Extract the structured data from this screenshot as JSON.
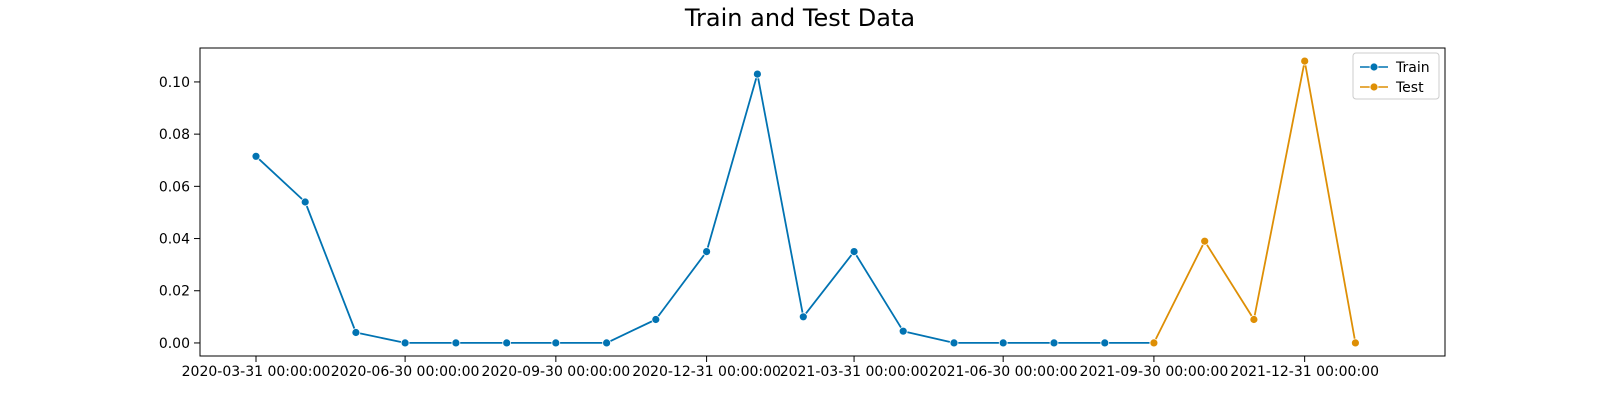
{
  "chart_data": {
    "type": "line",
    "title": "Train and Test Data",
    "xlabel": "",
    "ylabel": "",
    "ylim": [
      -0.005,
      0.113
    ],
    "grid": false,
    "legend_placement": "top-right",
    "x_ticks": [
      "2020-03-31 00:00:00",
      "2020-06-30 00:00:00",
      "2020-09-30 00:00:00",
      "2020-12-31 00:00:00",
      "2021-03-31 00:00:00",
      "2021-06-30 00:00:00",
      "2021-09-30 00:00:00",
      "2021-12-31 00:00:00"
    ],
    "y_ticks": [
      "0.00",
      "0.02",
      "0.04",
      "0.06",
      "0.08",
      "0.10"
    ],
    "series": [
      {
        "name": "Train",
        "color": "#0173b2",
        "x": [
          "2020-03-31",
          "2020-04-30",
          "2020-05-31",
          "2020-06-30",
          "2020-07-31",
          "2020-08-31",
          "2020-09-30",
          "2020-10-31",
          "2020-11-30",
          "2020-12-31",
          "2021-01-31",
          "2021-02-28",
          "2021-03-31",
          "2021-04-30",
          "2021-05-31",
          "2021-06-30",
          "2021-07-31",
          "2021-08-31",
          "2021-09-30"
        ],
        "values": [
          0.0715,
          0.054,
          0.004,
          0.0,
          0.0,
          0.0,
          0.0,
          0.0,
          0.009,
          0.035,
          0.103,
          0.01,
          0.035,
          0.0045,
          0.0,
          0.0,
          0.0,
          0.0,
          0.0
        ]
      },
      {
        "name": "Test",
        "color": "#de8f05",
        "x": [
          "2021-09-30",
          "2021-10-31",
          "2021-11-30",
          "2021-12-31",
          "2022-01-31"
        ],
        "values": [
          0.0,
          0.039,
          0.009,
          0.108,
          0.0
        ]
      }
    ]
  }
}
